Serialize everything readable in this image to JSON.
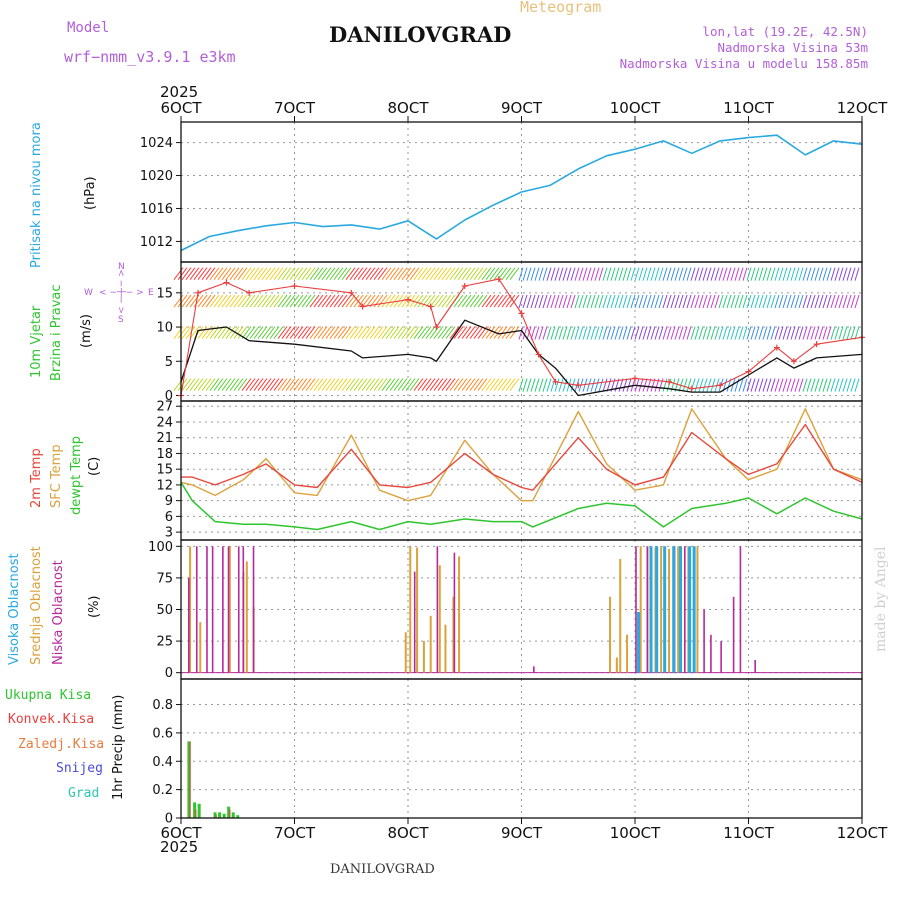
{
  "header": {
    "model_label": "Model",
    "model_name": "wrf−nmm_v3.9.1  e3km",
    "title": "DANILOVGRAD",
    "meteogram_label": "Meteogram",
    "lonlat": "lon,lat (19.2E, 42.5N)",
    "elevation": "Nadmorska Visina 53m",
    "model_elevation": "Nadmorska Visina u modelu 158.85m",
    "year_top": "2025",
    "year_bottom": "2025",
    "footer_title": "DANILOVGRAD",
    "watermark": "made by Angel"
  },
  "colors": {
    "pressure": "#2aa9e0",
    "wind_speed": "#111111",
    "wind_gust": "#e83e3e",
    "temp_2m": "#e8473b",
    "temp_sfc": "#dca23e",
    "dewpoint": "#2ec52e",
    "cloud_high": "#2aa9e0",
    "cloud_mid": "#d9a23a",
    "cloud_low": "#b5299a",
    "precip_total": "#2ec52e",
    "precip_conv": "#e83e3e",
    "model_text": "#b25fd8"
  },
  "chart_data": [
    {
      "type": "line",
      "id": "pressure",
      "ylabel": "Pritisak na nivou mora",
      "unit": "(hPa)",
      "x_tick_labels": [
        "6OCT",
        "7OCT",
        "8OCT",
        "9OCT",
        "10OCT",
        "11OCT",
        "12OCT"
      ],
      "yticks": [
        1012,
        1016,
        1020,
        1024
      ],
      "ylim": [
        1009.5,
        1026.5
      ],
      "x": [
        0,
        0.25,
        0.5,
        0.75,
        1,
        1.25,
        1.5,
        1.75,
        2,
        2.25,
        2.5,
        2.75,
        3,
        3.25,
        3.5,
        3.75,
        4,
        4.25,
        4.5,
        4.75,
        5,
        5.25,
        5.5,
        5.75,
        6
      ],
      "values": [
        1010.9,
        1012.6,
        1013.3,
        1013.9,
        1014.3,
        1013.8,
        1014.0,
        1013.5,
        1014.5,
        1012.3,
        1014.6,
        1016.4,
        1018.0,
        1018.8,
        1020.8,
        1022.4,
        1023.2,
        1024.2,
        1022.7,
        1024.2,
        1024.6,
        1024.9,
        1022.5,
        1024.2,
        1023.8
      ]
    },
    {
      "type": "line",
      "id": "wind",
      "ylabel_1": "10m Vjetar",
      "ylabel_2": "Brzina i Pravac",
      "unit": "(m/s)",
      "compass": {
        "n": "N",
        "s": "S",
        "e": "E",
        "w": "W",
        "arrow_h": "< − | − >",
        "arrow_v": "< − | − >"
      },
      "yticks": [
        0,
        5,
        10,
        15
      ],
      "ylim": [
        -0.8,
        19.5
      ],
      "x": [
        0,
        0.15,
        0.4,
        0.6,
        1,
        1.5,
        1.6,
        2,
        2.2,
        2.25,
        2.5,
        2.8,
        3,
        3.15,
        3.3,
        3.5,
        4,
        4.3,
        4.5,
        4.75,
        5,
        5.25,
        5.4,
        5.6,
        6
      ],
      "speed": [
        2.0,
        9.5,
        10.0,
        8.0,
        7.5,
        6.5,
        5.5,
        6.0,
        5.5,
        5.0,
        11.0,
        9.0,
        9.5,
        6.0,
        4.0,
        0.0,
        1.5,
        1.0,
        0.5,
        0.5,
        3.0,
        5.5,
        4.0,
        5.5,
        6.0
      ],
      "gust": [
        0,
        15.0,
        16.5,
        15.0,
        16.0,
        15.0,
        13.0,
        14.0,
        13.0,
        10.0,
        16.0,
        17.0,
        12.0,
        6.0,
        2.0,
        1.5,
        2.5,
        2.0,
        1.0,
        1.5,
        3.5,
        7.0,
        5.0,
        7.5,
        8.5
      ]
    },
    {
      "type": "line",
      "id": "temperature",
      "ylabel_1": "2m Temp",
      "ylabel_2": "SFC Temp",
      "ylabel_3": "dewpt Temp",
      "unit": "(C)",
      "yticks": [
        3,
        6,
        9,
        12,
        15,
        18,
        21,
        24,
        27
      ],
      "ylim": [
        1.5,
        28
      ],
      "x": [
        0,
        0.1,
        0.3,
        0.55,
        0.75,
        1,
        1.2,
        1.5,
        1.75,
        2,
        2.2,
        2.5,
        2.75,
        3,
        3.1,
        3.5,
        3.75,
        4,
        4.25,
        4.5,
        4.8,
        5,
        5.25,
        5.5,
        5.75,
        6
      ],
      "t2m": [
        13.5,
        13.5,
        12.0,
        14.0,
        16.0,
        12.0,
        11.5,
        18.8,
        12.0,
        11.5,
        12.5,
        18.0,
        14.0,
        11.5,
        11.0,
        21.0,
        15.0,
        12.0,
        13.5,
        22.0,
        17.0,
        14.0,
        16.0,
        23.5,
        15.0,
        12.5
      ],
      "tsfc": [
        12.5,
        12.0,
        10.0,
        13.0,
        17.0,
        10.5,
        10.0,
        21.5,
        11.0,
        9.0,
        10.0,
        20.5,
        14.0,
        9.0,
        9.0,
        26.0,
        16.0,
        11.0,
        12.0,
        26.5,
        17.0,
        13.0,
        15.0,
        26.5,
        15.0,
        13.0
      ],
      "dew": [
        12.5,
        9.0,
        5.0,
        4.5,
        4.5,
        4.0,
        3.5,
        5.0,
        3.5,
        5.0,
        4.5,
        5.5,
        5.0,
        5.0,
        4.0,
        7.5,
        8.5,
        8.0,
        4.0,
        7.5,
        8.5,
        9.5,
        6.5,
        9.5,
        7.0,
        5.5
      ]
    },
    {
      "type": "bar",
      "id": "clouds",
      "ylabel_1": "Visoka Oblacnost",
      "ylabel_2": "Srednja Oblacnost",
      "ylabel_3": "Niska Oblacnost",
      "unit": "(%)",
      "yticks": [
        0,
        25,
        50,
        75,
        100
      ],
      "ylim": [
        -5,
        105
      ],
      "low": [
        [
          0.06,
          75
        ],
        [
          0.13,
          100
        ],
        [
          0.22,
          100
        ],
        [
          0.27,
          100
        ],
        [
          0.36,
          100
        ],
        [
          0.41,
          100
        ],
        [
          0.5,
          100
        ],
        [
          0.54,
          100
        ],
        [
          0.63,
          100
        ],
        [
          2.05,
          80
        ],
        [
          2.25,
          100
        ],
        [
          2.4,
          95
        ],
        [
          3.1,
          5
        ],
        [
          4.0,
          100
        ],
        [
          4.1,
          100
        ],
        [
          4.18,
          100
        ],
        [
          4.25,
          100
        ],
        [
          4.34,
          100
        ],
        [
          4.43,
          100
        ],
        [
          4.51,
          100
        ],
        [
          4.6,
          50
        ],
        [
          4.66,
          30
        ],
        [
          4.75,
          25
        ],
        [
          4.86,
          60
        ],
        [
          4.92,
          100
        ],
        [
          5.05,
          10
        ]
      ],
      "mid": [
        [
          0.08,
          100
        ],
        [
          0.17,
          40
        ],
        [
          0.43,
          100
        ],
        [
          0.55,
          80
        ],
        [
          0.58,
          88
        ],
        [
          0.64,
          52
        ],
        [
          1.98,
          32
        ],
        [
          2.02,
          100
        ],
        [
          2.08,
          99
        ],
        [
          2.14,
          25
        ],
        [
          2.2,
          45
        ],
        [
          2.28,
          85
        ],
        [
          2.33,
          38
        ],
        [
          2.4,
          60
        ],
        [
          2.45,
          92
        ],
        [
          3.78,
          60
        ],
        [
          3.84,
          12
        ],
        [
          3.87,
          90
        ],
        [
          3.93,
          30
        ],
        [
          4.05,
          100
        ],
        [
          4.11,
          100
        ],
        [
          4.18,
          99
        ],
        [
          4.23,
          100
        ],
        [
          4.3,
          98
        ],
        [
          4.38,
          100
        ],
        [
          4.47,
          100
        ],
        [
          4.55,
          100
        ]
      ],
      "high": [
        [
          4.04,
          48
        ],
        [
          4.15,
          100
        ],
        [
          4.2,
          100
        ],
        [
          4.27,
          100
        ],
        [
          4.35,
          100
        ],
        [
          4.41,
          100
        ],
        [
          4.49,
          100
        ],
        [
          4.53,
          100
        ]
      ]
    },
    {
      "type": "bar",
      "id": "precip",
      "ylabel": "1hr Precip (mm)",
      "legend": [
        "Ukupna Kisa",
        "Konvek.Kisa",
        "Zaledj.Kisa",
        "Snijeg",
        "Grad"
      ],
      "yticks": [
        0,
        0.2,
        0.4,
        0.6,
        0.8
      ],
      "ylim": [
        0,
        0.98
      ],
      "total": [
        [
          0.07,
          0.54
        ],
        [
          0.12,
          0.11
        ],
        [
          0.16,
          0.1
        ],
        [
          0.3,
          0.04
        ],
        [
          0.34,
          0.04
        ],
        [
          0.38,
          0.03
        ],
        [
          0.42,
          0.08
        ],
        [
          0.46,
          0.04
        ],
        [
          0.5,
          0.02
        ]
      ],
      "conv": [
        [
          0.08,
          0.54
        ],
        [
          0.13,
          0.06
        ],
        [
          0.31,
          0.02
        ],
        [
          0.43,
          0.06
        ]
      ]
    }
  ]
}
